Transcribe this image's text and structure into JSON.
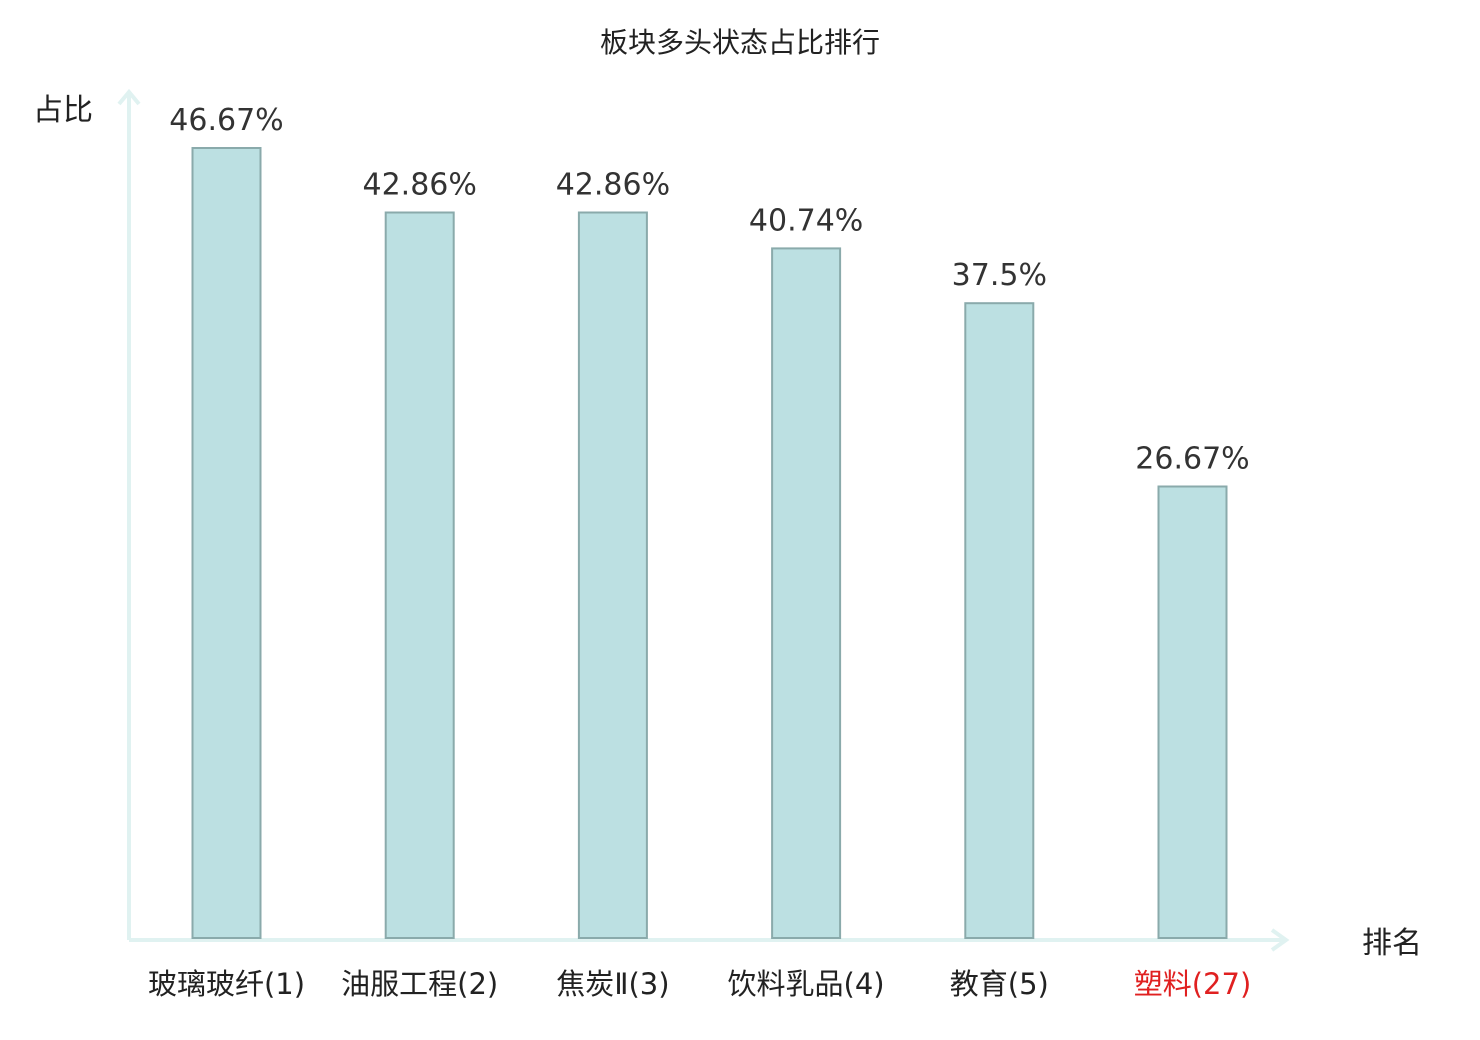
{
  "chart_data": {
    "type": "bar",
    "title": "板块多头状态占比排行",
    "xlabel": "排名",
    "ylabel": "占比",
    "categories": [
      "玻璃玻纤(1)",
      "油服工程(2)",
      "焦炭Ⅱ(3)",
      "饮料乳品(4)",
      "教育(5)",
      "塑料(27)"
    ],
    "values": [
      46.67,
      42.86,
      42.86,
      40.74,
      37.5,
      26.67
    ],
    "value_labels": [
      "46.67%",
      "42.86%",
      "42.86%",
      "40.74%",
      "37.5%",
      "26.67%"
    ],
    "ylim": [
      0,
      46.67
    ],
    "grid": false,
    "highlight_index": 5
  },
  "colors": {
    "bar_fill": "#bce0e2",
    "bar_stroke": "#8aaaab",
    "axis": "#e0f2f1",
    "text": "#222222",
    "value_text": "#333333",
    "highlight_text": "#e02020"
  }
}
